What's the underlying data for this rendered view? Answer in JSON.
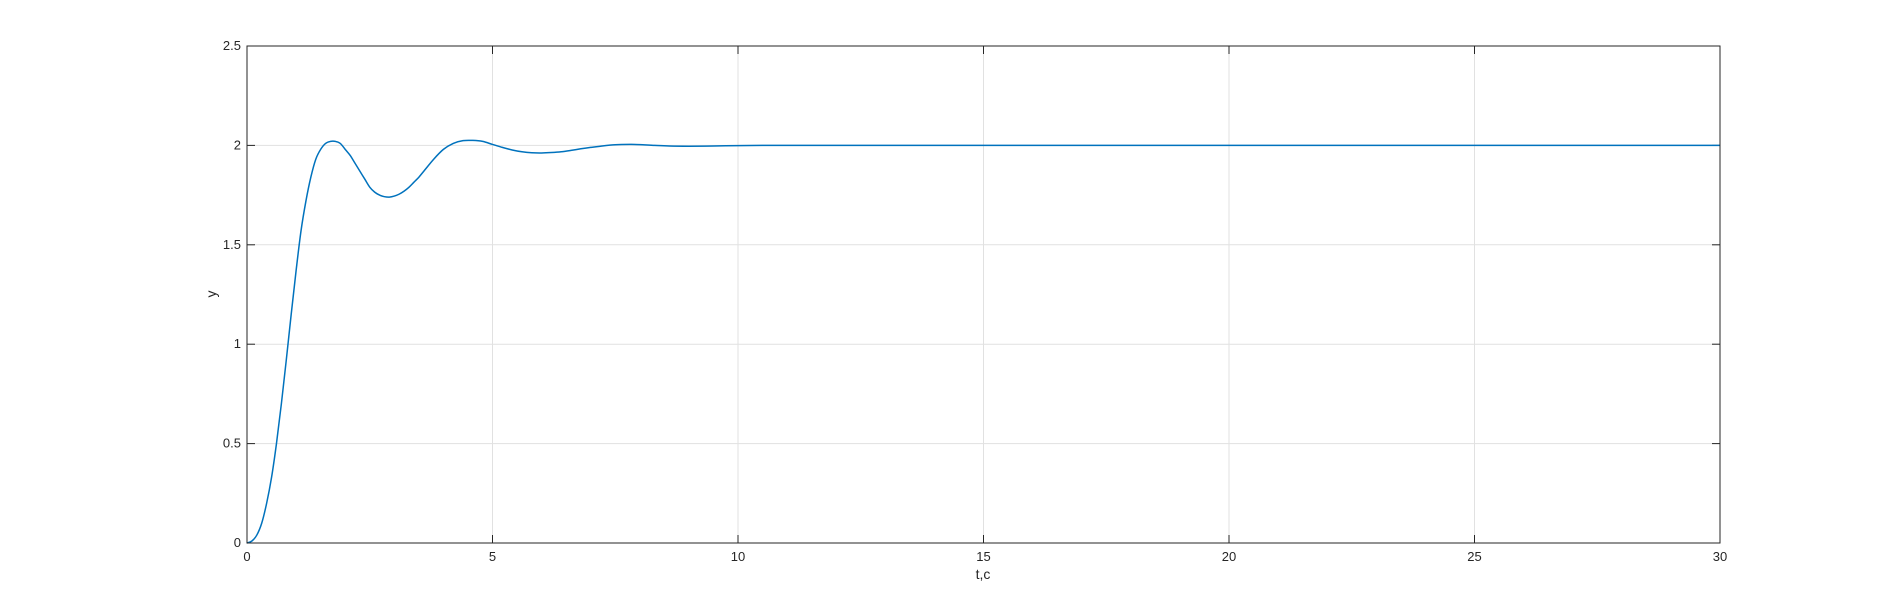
{
  "chart_data": {
    "type": "line",
    "title": "",
    "xlabel": "t,c",
    "ylabel": "y",
    "xlim": [
      0,
      30
    ],
    "ylim": [
      0,
      2.5
    ],
    "grid": true,
    "legend": "none",
    "x_ticks": [
      0,
      5,
      10,
      15,
      20,
      25,
      30
    ],
    "y_ticks": [
      0,
      0.5,
      1,
      1.5,
      2,
      2.5
    ],
    "x_tick_labels": [
      "0",
      "5",
      "10",
      "15",
      "20",
      "25",
      "30"
    ],
    "y_tick_labels": [
      "0",
      "0.5",
      "1",
      "1.5",
      "2",
      "2.5"
    ],
    "colors": {
      "line": "#0072BD",
      "grid": "#e1e1e1",
      "axes": "#262626"
    },
    "series": [
      {
        "x": [
          0,
          0.1,
          0.2,
          0.3,
          0.4,
          0.5,
          0.6,
          0.7,
          0.8,
          0.9,
          1.0,
          1.1,
          1.2,
          1.3,
          1.4,
          1.5,
          1.6,
          1.7,
          1.8,
          1.9,
          2.0,
          2.1,
          2.2,
          2.3,
          2.4,
          2.5,
          2.6,
          2.7,
          2.8,
          2.9,
          3.0,
          3.1,
          3.2,
          3.3,
          3.4,
          3.5,
          3.6,
          3.8,
          4.0,
          4.2,
          4.4,
          4.6,
          4.8,
          5.0,
          5.2,
          5.4,
          5.6,
          5.8,
          6.0,
          6.2,
          6.4,
          6.6,
          6.8,
          7.0,
          7.2,
          7.5,
          7.8,
          8.0,
          8.3,
          8.6,
          9.0,
          9.5,
          10.0,
          10.5,
          11.0,
          12.0,
          13.0,
          15.0,
          20.0,
          25.0,
          30.0
        ],
        "y": [
          0,
          0.01,
          0.04,
          0.1,
          0.2,
          0.33,
          0.5,
          0.7,
          0.92,
          1.15,
          1.37,
          1.57,
          1.72,
          1.84,
          1.93,
          1.98,
          2.01,
          2.02,
          2.02,
          2.01,
          1.98,
          1.95,
          1.91,
          1.87,
          1.83,
          1.79,
          1.765,
          1.75,
          1.742,
          1.74,
          1.745,
          1.755,
          1.77,
          1.79,
          1.815,
          1.84,
          1.87,
          1.93,
          1.98,
          2.01,
          2.024,
          2.025,
          2.02,
          2.005,
          1.99,
          1.977,
          1.968,
          1.963,
          1.962,
          1.964,
          1.968,
          1.975,
          1.983,
          1.99,
          1.996,
          2.003,
          2.005,
          2.004,
          2.0,
          1.997,
          1.996,
          1.997,
          1.999,
          2.0,
          2.0,
          2.0,
          2.0,
          2.0,
          2.0,
          2.0,
          2.0
        ]
      }
    ]
  }
}
